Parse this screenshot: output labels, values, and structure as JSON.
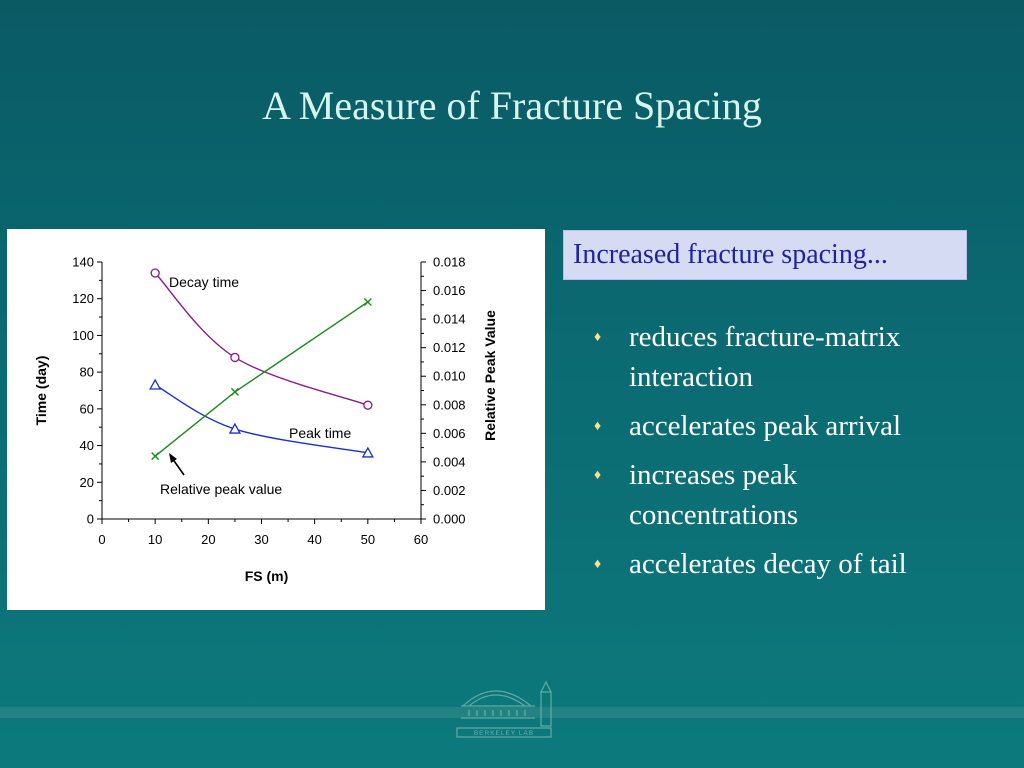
{
  "slide": {
    "title": "A Measure of Fracture Spacing",
    "callout": "Increased fracture spacing...",
    "bullets": [
      {
        "lines": [
          "reduces fracture-matrix",
          "interaction"
        ]
      },
      {
        "lines": [
          "accelerates peak arrival"
        ]
      },
      {
        "lines": [
          "increases peak",
          "concentrations"
        ]
      },
      {
        "lines": [
          "accelerates decay of tail"
        ]
      }
    ],
    "bullet_glyph": "♦",
    "logo_text": "BERKELEY LAB",
    "colors": {
      "title": "#d8f4ee",
      "callout_bg": "#d6dbf4",
      "callout_text": "#2222a0",
      "bullet_text": "#ffffff"
    }
  },
  "chart_data": {
    "type": "line",
    "xlabel": "FS (m)",
    "ylabel": "Time (day)",
    "y2label": "Relative Peak Value",
    "xlim": [
      0,
      60
    ],
    "ylim": [
      0,
      140
    ],
    "y2lim": [
      0,
      0.018
    ],
    "x_ticks": [
      "0",
      "10",
      "20",
      "30",
      "40",
      "50",
      "60"
    ],
    "y_ticks": [
      "0",
      "20",
      "40",
      "60",
      "80",
      "100",
      "120",
      "140"
    ],
    "y2_ticks": [
      "0.000",
      "0.002",
      "0.004",
      "0.006",
      "0.008",
      "0.010",
      "0.012",
      "0.014",
      "0.016",
      "0.018"
    ],
    "grid": false,
    "series": [
      {
        "name": "Decay time",
        "axis": "left",
        "marker": "circle",
        "color": "#8b1a8b",
        "x": [
          10,
          25,
          50
        ],
        "y": [
          134,
          88,
          62
        ]
      },
      {
        "name": "Peak time",
        "axis": "left",
        "marker": "triangle",
        "color": "#1a2fd0",
        "x": [
          10,
          25,
          50
        ],
        "y": [
          73,
          49,
          36
        ]
      },
      {
        "name": "Relative peak value",
        "axis": "right",
        "marker": "x",
        "color": "#1a8a1a",
        "x": [
          10,
          25,
          50
        ],
        "y": [
          0.0044,
          0.0089,
          0.0152
        ]
      }
    ],
    "annotations": [
      "Decay time",
      "Peak time",
      "Relative peak value"
    ]
  }
}
